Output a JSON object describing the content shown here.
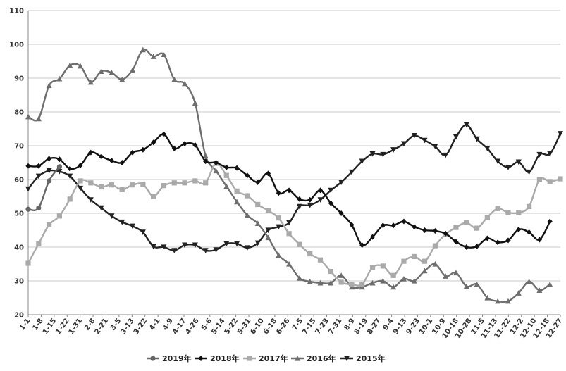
{
  "chart_data": {
    "type": "line",
    "title": "",
    "xlabel": "",
    "ylabel": "",
    "ylim": [
      20,
      110
    ],
    "yticks": [
      20,
      30,
      40,
      50,
      60,
      70,
      80,
      90,
      100,
      110
    ],
    "grid": "horizontal",
    "legend_position": "bottom",
    "x_tick_labels": [
      "1-1",
      "1-8",
      "1-15",
      "1-22",
      "1-31",
      "2-8",
      "2-21",
      "3-5",
      "3-13",
      "3-22",
      "4-1",
      "4-9",
      "4-17",
      "4-26",
      "5-6",
      "5-14",
      "5-22",
      "5-31",
      "6-10",
      "6-18",
      "6-26",
      "7-5",
      "7-15",
      "7-23",
      "7-31",
      "8-9",
      "8-19",
      "8-27",
      "9-4",
      "9-13",
      "9-23",
      "10-1",
      "10-9",
      "10-18",
      "10-28",
      "11-5",
      "11-13",
      "11-22",
      "12-2",
      "12-10",
      "12-18",
      "12-27"
    ],
    "series": [
      {
        "name": "2019年",
        "color": "#666666",
        "marker": "circle",
        "values": [
          51.2,
          51.6,
          59.6,
          63.8
        ]
      },
      {
        "name": "2018年",
        "color": "#111111",
        "marker": "diamond",
        "values": [
          64.0,
          64.0,
          66.2,
          66.0,
          63.2,
          64.2,
          68.0,
          66.8,
          65.6,
          65.0,
          68.0,
          68.8,
          71.0,
          73.4,
          69.2,
          70.6,
          70.2,
          65.4,
          65.0,
          63.6,
          63.4,
          61.2,
          59.2,
          61.8,
          56.0,
          56.8,
          54.2,
          54.0,
          56.8,
          53.0,
          50.0,
          46.6,
          40.6,
          43.0,
          46.4,
          46.4,
          47.6,
          46.0,
          45.0,
          44.8,
          44.0,
          41.6,
          40.0,
          40.2,
          42.6,
          41.4,
          42.0,
          45.2,
          44.4,
          42.2,
          47.6
        ]
      },
      {
        "name": "2017年",
        "color": "#aaaaaa",
        "marker": "square",
        "values": [
          35.2,
          41.0,
          46.6,
          49.2,
          54.2,
          59.6,
          59.0,
          57.8,
          58.4,
          57.0,
          58.4,
          58.6,
          55.0,
          58.2,
          59.0,
          59.0,
          59.6,
          59.0,
          64.8,
          61.2,
          56.6,
          55.2,
          52.6,
          50.8,
          48.6,
          44.0,
          40.8,
          38.0,
          36.2,
          32.8,
          29.6,
          29.0,
          29.0,
          34.0,
          34.4,
          31.6,
          35.8,
          37.2,
          35.8,
          40.4,
          43.8,
          45.8,
          47.2,
          45.6,
          48.8,
          51.4,
          50.2,
          50.2,
          52.0,
          60.0,
          59.4,
          60.2
        ]
      },
      {
        "name": "2016年",
        "color": "#6e6e6e",
        "marker": "triangle-up",
        "values": [
          78.6,
          78.0,
          87.8,
          89.8,
          93.8,
          93.6,
          88.8,
          92.0,
          91.6,
          89.6,
          92.4,
          98.4,
          96.4,
          97.0,
          89.6,
          88.4,
          82.6,
          67.0,
          62.6,
          58.0,
          53.4,
          49.4,
          47.0,
          42.8,
          37.6,
          35.0,
          30.8,
          29.8,
          29.4,
          29.4,
          31.6,
          28.2,
          28.2,
          29.4,
          30.0,
          28.2,
          30.6,
          30.0,
          33.0,
          35.0,
          31.4,
          32.4,
          28.4,
          29.0,
          25.0,
          24.0,
          24.0,
          26.4,
          29.8,
          27.2,
          29.0
        ]
      },
      {
        "name": "2015年",
        "color": "#222222",
        "marker": "triangle-down",
        "values": [
          57.2,
          61.0,
          62.6,
          62.4,
          61.0,
          57.4,
          54.0,
          51.6,
          49.2,
          47.4,
          46.2,
          44.4,
          40.2,
          40.0,
          39.0,
          40.6,
          40.6,
          39.0,
          39.2,
          41.0,
          41.0,
          39.8,
          41.2,
          45.0,
          46.0,
          47.2,
          52.0,
          52.4,
          54.0,
          56.8,
          59.2,
          62.2,
          65.4,
          67.6,
          67.4,
          68.8,
          70.6,
          73.0,
          71.6,
          69.8,
          67.2,
          72.6,
          76.2,
          72.0,
          69.2,
          65.4,
          63.6,
          65.2,
          62.2,
          67.4,
          67.6,
          73.6
        ]
      }
    ]
  }
}
